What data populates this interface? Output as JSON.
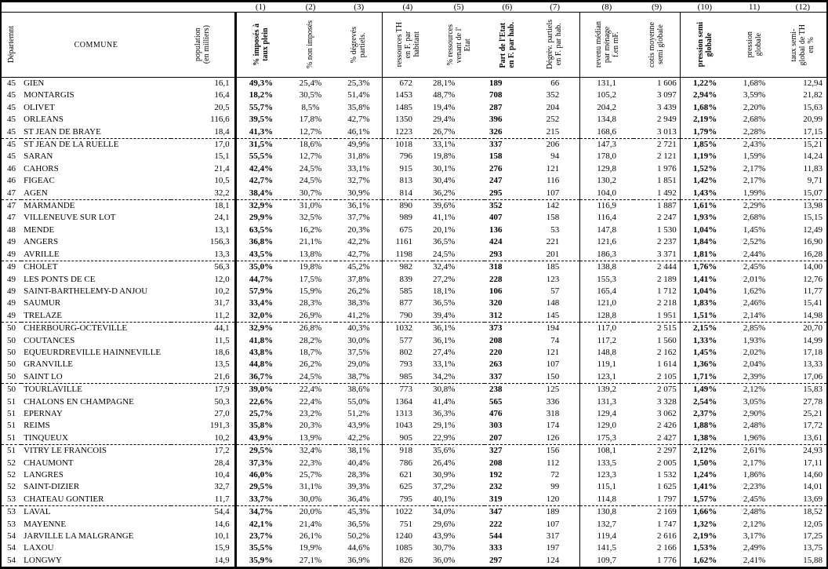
{
  "table": {
    "corner_headers": {
      "dept": "Départemnt",
      "commune": "COMMUNE",
      "population": "population\n(en milliers)"
    },
    "column_numbers": [
      "(1)",
      "(2)",
      "(3)",
      "(4)",
      "(5)",
      "(6)",
      "(7)",
      "(8)",
      "(9)",
      "(10)",
      "11)",
      "(12)"
    ],
    "column_headers": [
      "% imposés à\ntaux plein",
      "% non imposés",
      "% dégrevés\npartiels.",
      "ressources TH\nen F. par\nhabitant",
      "% ressources\nvenant de l'\nEtat",
      "Part de l'Etat\nen F. par hab.",
      "Dégrèv. partiels\nen F. par hab.",
      "revenu médian\npar ménage\nf.en mF.",
      "cotis moyenne\nsemi globale",
      "pression semi\nglobale",
      "pression\nglobale",
      "taux semi-\nglobal de TH\nen %"
    ],
    "rows": [
      [
        "45",
        "GIEN",
        "16,1",
        "49,3%",
        "25,4%",
        "25,3%",
        "672",
        "28,1%",
        "189",
        "66",
        "131,1",
        "1 606",
        "1,22%",
        "1,68%",
        "12,94"
      ],
      [
        "45",
        "MONTARGIS",
        "16,4",
        "18,2%",
        "30,5%",
        "51,4%",
        "1453",
        "48,7%",
        "708",
        "352",
        "105,2",
        "3 097",
        "2,94%",
        "3,59%",
        "21,82"
      ],
      [
        "45",
        "OLIVET",
        "20,5",
        "55,7%",
        "8,5%",
        "35,8%",
        "1485",
        "19,4%",
        "287",
        "204",
        "204,2",
        "3 439",
        "1,68%",
        "2,20%",
        "15,63"
      ],
      [
        "45",
        "ORLEANS",
        "116,6",
        "39,5%",
        "17,8%",
        "42,7%",
        "1350",
        "29,4%",
        "396",
        "252",
        "134,8",
        "2 949",
        "2,19%",
        "2,68%",
        "20,99"
      ],
      [
        "45",
        "ST JEAN DE BRAYE",
        "18,4",
        "41,3%",
        "12,7%",
        "46,1%",
        "1223",
        "26,7%",
        "326",
        "215",
        "168,6",
        "3 013",
        "1,79%",
        "2,28%",
        "17,15"
      ],
      [
        "45",
        "ST JEAN DE LA RUELLE",
        "17,0",
        "31,5%",
        "18,6%",
        "49,9%",
        "1018",
        "33,1%",
        "337",
        "206",
        "147,3",
        "2 721",
        "1,85%",
        "2,43%",
        "15,21"
      ],
      [
        "45",
        "SARAN",
        "15,1",
        "55,5%",
        "12,7%",
        "31,8%",
        "796",
        "19,8%",
        "158",
        "94",
        "178,0",
        "2 121",
        "1,19%",
        "1,59%",
        "14,24"
      ],
      [
        "46",
        "CAHORS",
        "21,4",
        "42,4%",
        "24,5%",
        "33,1%",
        "915",
        "30,1%",
        "276",
        "121",
        "129,8",
        "1 976",
        "1,52%",
        "2,17%",
        "11,83"
      ],
      [
        "46",
        "FIGEAC",
        "10,5",
        "42,7%",
        "24,5%",
        "32,7%",
        "813",
        "30,4%",
        "247",
        "116",
        "130,2",
        "1 851",
        "1,42%",
        "2,17%",
        "9,71"
      ],
      [
        "47",
        "AGEN",
        "32,2",
        "38,4%",
        "30,7%",
        "30,9%",
        "814",
        "36,2%",
        "295",
        "107",
        "104,0",
        "1 492",
        "1,43%",
        "1,99%",
        "15,07"
      ],
      [
        "47",
        "MARMANDE",
        "18,1",
        "32,9%",
        "31,0%",
        "36,1%",
        "890",
        "39,6%",
        "352",
        "142",
        "116,9",
        "1 887",
        "1,61%",
        "2,29%",
        "13,98"
      ],
      [
        "47",
        "VILLENEUVE SUR LOT",
        "24,1",
        "29,9%",
        "32,5%",
        "37,7%",
        "989",
        "41,1%",
        "407",
        "158",
        "116,4",
        "2 247",
        "1,93%",
        "2,68%",
        "15,15"
      ],
      [
        "48",
        "MENDE",
        "13,1",
        "63,5%",
        "16,2%",
        "20,3%",
        "675",
        "20,1%",
        "136",
        "53",
        "147,8",
        "1 530",
        "1,04%",
        "1,45%",
        "12,49"
      ],
      [
        "49",
        "ANGERS",
        "156,3",
        "36,8%",
        "21,1%",
        "42,2%",
        "1161",
        "36,5%",
        "424",
        "221",
        "121,6",
        "2 237",
        "1,84%",
        "2,52%",
        "16,90"
      ],
      [
        "49",
        "AVRILLE",
        "13,3",
        "43,5%",
        "13,8%",
        "42,7%",
        "1198",
        "24,5%",
        "293",
        "201",
        "186,3",
        "3 371",
        "1,81%",
        "2,44%",
        "16,28"
      ],
      [
        "49",
        "CHOLET",
        "56,3",
        "35,0%",
        "19,8%",
        "45,2%",
        "982",
        "32,4%",
        "318",
        "185",
        "138,8",
        "2 444",
        "1,76%",
        "2,45%",
        "14,00"
      ],
      [
        "49",
        "LES PONTS DE CE",
        "12,0",
        "44,7%",
        "17,5%",
        "37,8%",
        "839",
        "27,2%",
        "228",
        "123",
        "155,3",
        "2 189",
        "1,41%",
        "2,01%",
        "12,76"
      ],
      [
        "49",
        "SAINT-BARTHELEMY-D ANJOU",
        "10,2",
        "57,9%",
        "15,9%",
        "26,2%",
        "585",
        "18,1%",
        "106",
        "57",
        "165,4",
        "1 712",
        "1,04%",
        "1,62%",
        "11,77"
      ],
      [
        "49",
        "SAUMUR",
        "31,7",
        "33,4%",
        "28,3%",
        "38,3%",
        "877",
        "36,5%",
        "320",
        "148",
        "121,0",
        "2 218",
        "1,83%",
        "2,46%",
        "15,41"
      ],
      [
        "49",
        "TRELAZE",
        "11,2",
        "32,0%",
        "26,9%",
        "41,2%",
        "790",
        "39,4%",
        "312",
        "145",
        "128,8",
        "1 951",
        "1,51%",
        "2,14%",
        "14,98"
      ],
      [
        "50",
        "CHERBOURG-OCTEVILLE",
        "44,1",
        "32,9%",
        "26,8%",
        "40,3%",
        "1032",
        "36,1%",
        "373",
        "194",
        "117,0",
        "2 515",
        "2,15%",
        "2,85%",
        "20,70"
      ],
      [
        "50",
        "COUTANCES",
        "11,5",
        "41,8%",
        "28,2%",
        "30,0%",
        "577",
        "36,1%",
        "208",
        "74",
        "117,2",
        "1 560",
        "1,33%",
        "1,93%",
        "14,99"
      ],
      [
        "50",
        "EQUEURDREVILLE HAINNEVILLE",
        "18,6",
        "43,8%",
        "18,7%",
        "37,5%",
        "802",
        "27,4%",
        "220",
        "121",
        "148,8",
        "2 162",
        "1,45%",
        "2,02%",
        "17,18"
      ],
      [
        "50",
        "GRANVILLE",
        "13,5",
        "44,8%",
        "26,2%",
        "29,0%",
        "793",
        "33,1%",
        "263",
        "107",
        "119,1",
        "1 614",
        "1,36%",
        "2,04%",
        "13,33"
      ],
      [
        "50",
        "SAINT LO",
        "21,6",
        "36,7%",
        "24,5%",
        "38,7%",
        "985",
        "34,2%",
        "337",
        "150",
        "123,1",
        "2 105",
        "1,71%",
        "2,39%",
        "17,06"
      ],
      [
        "50",
        "TOURLAVILLE",
        "17,9",
        "39,0%",
        "22,4%",
        "38,6%",
        "773",
        "30,8%",
        "238",
        "125",
        "139,2",
        "2 075",
        "1,49%",
        "2,12%",
        "15,83"
      ],
      [
        "51",
        "CHALONS EN CHAMPAGNE",
        "50,3",
        "22,6%",
        "22,4%",
        "55,0%",
        "1364",
        "41,4%",
        "565",
        "336",
        "131,3",
        "3 328",
        "2,54%",
        "3,05%",
        "27,78"
      ],
      [
        "51",
        "EPERNAY",
        "27,0",
        "25,7%",
        "23,2%",
        "51,2%",
        "1313",
        "36,3%",
        "476",
        "318",
        "129,4",
        "3 062",
        "2,37%",
        "2,90%",
        "25,21"
      ],
      [
        "51",
        "REIMS",
        "191,3",
        "35,8%",
        "20,3%",
        "43,9%",
        "1043",
        "29,1%",
        "303",
        "174",
        "129,0",
        "2 426",
        "1,88%",
        "2,48%",
        "17,72"
      ],
      [
        "51",
        "TINQUEUX",
        "10,2",
        "43,9%",
        "13,9%",
        "42,2%",
        "905",
        "22,9%",
        "207",
        "126",
        "175,3",
        "2 427",
        "1,38%",
        "1,96%",
        "13,61"
      ],
      [
        "51",
        "VITRY LE FRANCOIS",
        "17,2",
        "29,5%",
        "32,4%",
        "38,1%",
        "918",
        "35,6%",
        "327",
        "156",
        "108,1",
        "2 297",
        "2,12%",
        "2,61%",
        "24,93"
      ],
      [
        "52",
        "CHAUMONT",
        "28,4",
        "37,3%",
        "22,3%",
        "40,4%",
        "786",
        "26,4%",
        "208",
        "112",
        "133,5",
        "2 005",
        "1,50%",
        "2,17%",
        "17,11"
      ],
      [
        "52",
        "LANGRES",
        "10,4",
        "46,0%",
        "25,7%",
        "28,3%",
        "621",
        "30,9%",
        "192",
        "72",
        "123,3",
        "1 532",
        "1,24%",
        "1,86%",
        "14,60"
      ],
      [
        "52",
        "SAINT-DIZIER",
        "32,7",
        "29,5%",
        "31,1%",
        "39,3%",
        "625",
        "37,2%",
        "232",
        "99",
        "115,1",
        "1 625",
        "1,41%",
        "2,23%",
        "14,01"
      ],
      [
        "53",
        "CHATEAU GONTIER",
        "11,7",
        "33,7%",
        "30,0%",
        "36,4%",
        "795",
        "40,1%",
        "319",
        "120",
        "114,8",
        "1 797",
        "1,57%",
        "2,45%",
        "13,69"
      ],
      [
        "53",
        "LAVAL",
        "54,4",
        "34,7%",
        "20,0%",
        "45,3%",
        "1022",
        "34,0%",
        "347",
        "189",
        "130,8",
        "2 169",
        "1,66%",
        "2,48%",
        "18,52"
      ],
      [
        "53",
        "MAYENNE",
        "14,6",
        "42,1%",
        "21,4%",
        "36,5%",
        "751",
        "29,6%",
        "222",
        "107",
        "132,7",
        "1 747",
        "1,32%",
        "2,12%",
        "12,05"
      ],
      [
        "54",
        "JARVILLE LA MALGRANGE",
        "10,1",
        "23,7%",
        "26,1%",
        "50,2%",
        "1240",
        "43,9%",
        "544",
        "317",
        "119,4",
        "2 616",
        "2,19%",
        "3,17%",
        "17,25"
      ],
      [
        "54",
        "LAXOU",
        "15,9",
        "35,5%",
        "19,9%",
        "44,6%",
        "1085",
        "30,7%",
        "333",
        "197",
        "141,5",
        "2 166",
        "1,53%",
        "2,49%",
        "13,75"
      ],
      [
        "54",
        "LONGWY",
        "14,9",
        "35,9%",
        "27,1%",
        "36,9%",
        "826",
        "36,0%",
        "297",
        "124",
        "109,7",
        "1 776",
        "1,62%",
        "2,41%",
        "15,88"
      ]
    ]
  }
}
